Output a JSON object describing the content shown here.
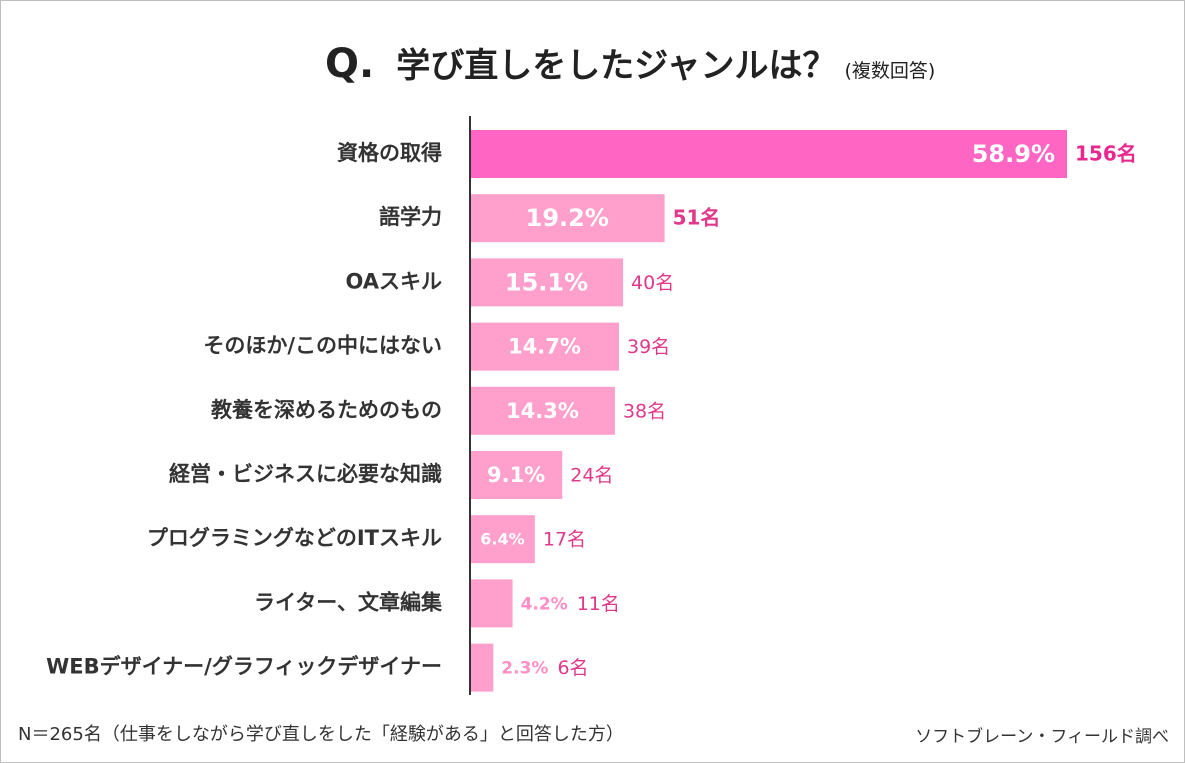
{
  "title": {
    "q": "Q.",
    "main": "学び直しをしたジャンルは？",
    "sub": "(複数回答)"
  },
  "footer": {
    "note": "N＝265名（仕事をしながら学び直しをした「経験がある」と回答した方）",
    "source": "ソフトブレーン・フィールド調べ"
  },
  "colors": {
    "bar_top": "#ff66c4",
    "bar": "#ff9fcc",
    "count_top": "#e8288e",
    "count": "#e0388a",
    "pct_light": "#ff8fc4",
    "axis": "#333333",
    "label": "#333333"
  },
  "chart_data": {
    "type": "bar",
    "orientation": "horizontal",
    "categories": [
      "資格の取得",
      "語学力",
      "OAスキル",
      "そのほか/この中にはない",
      "教養を深めるためのもの",
      "経営・ビジネスに必要な知識",
      "プログラミングなどのITスキル",
      "ライター、文章編集",
      "WEBデザイナー/グラフィックデザイナー"
    ],
    "values": [
      58.9,
      19.2,
      15.1,
      14.7,
      14.3,
      9.1,
      6.4,
      4.2,
      2.3
    ],
    "value_labels": [
      "58.9%",
      "19.2%",
      "15.1%",
      "14.7%",
      "14.3%",
      "9.1%",
      "6.4%",
      "4.2%",
      "2.3%"
    ],
    "counts": [
      "156名",
      "51名",
      "40名",
      "39名",
      "38名",
      "24名",
      "17名",
      "11名",
      "6名"
    ],
    "title": "学び直しをしたジャンルは？",
    "xlabel": "",
    "ylabel": "",
    "xlim": [
      0,
      58.9
    ],
    "grid": false
  }
}
